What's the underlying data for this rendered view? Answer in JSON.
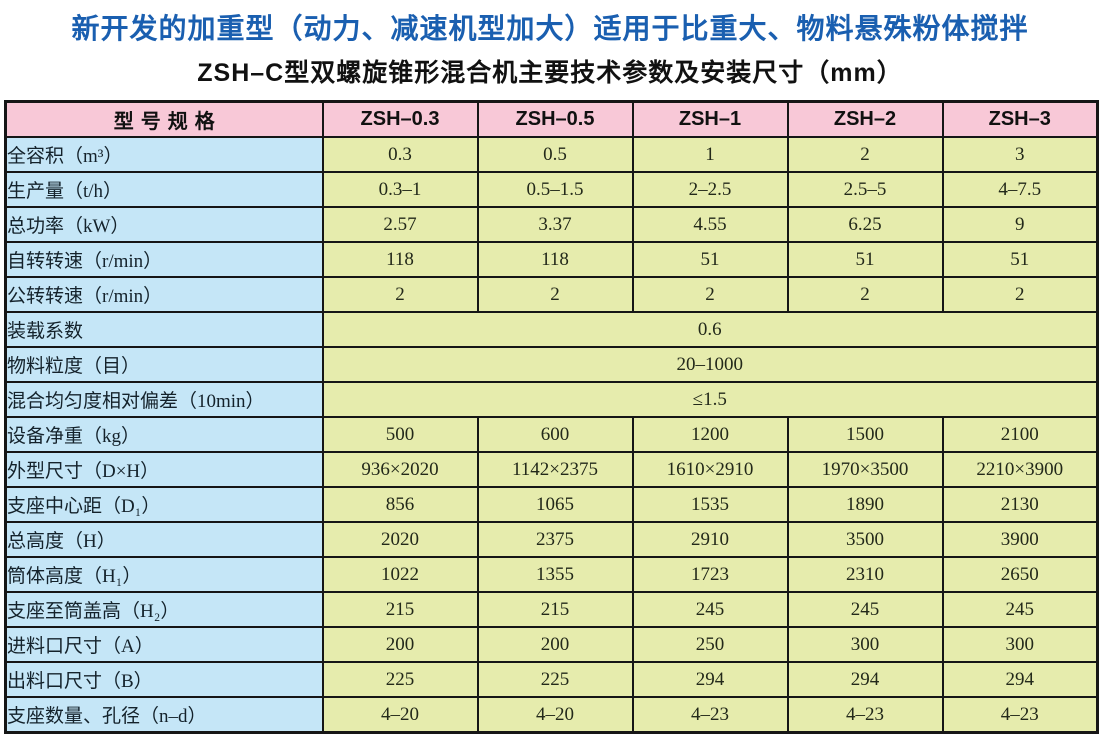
{
  "page": {
    "title": "新开发的加重型（动力、减速机型加大）适用于比重大、物料悬殊粉体搅拌",
    "subtitle": "ZSH–C型双螺旋锥形混合机主要技术参数及安装尺寸（mm）"
  },
  "colors": {
    "title_blue": "#1a5fb0",
    "header_pink": "#f8c8d7",
    "label_blue": "#c5e6f7",
    "cell_green": "#e6ecad",
    "border_black": "#161616"
  },
  "chart_data": {
    "type": "table",
    "columns": [
      "型号规格",
      "ZSH–0.3",
      "ZSH–0.5",
      "ZSH–1",
      "ZSH–2",
      "ZSH–3"
    ],
    "rows": [
      {
        "label": "全容积（m³）",
        "values": [
          "0.3",
          "0.5",
          "1",
          "2",
          "3"
        ]
      },
      {
        "label": "生产量（t/h）",
        "values": [
          "0.3–1",
          "0.5–1.5",
          "2–2.5",
          "2.5–5",
          "4–7.5"
        ]
      },
      {
        "label": "总功率（kW）",
        "values": [
          "2.57",
          "3.37",
          "4.55",
          "6.25",
          "9"
        ]
      },
      {
        "label": "自转转速（r/min）",
        "values": [
          "118",
          "118",
          "51",
          "51",
          "51"
        ]
      },
      {
        "label": "公转转速（r/min）",
        "values": [
          "2",
          "2",
          "2",
          "2",
          "2"
        ]
      },
      {
        "label": "装载系数",
        "values": [
          "0.6"
        ]
      },
      {
        "label": "物料粒度（目）",
        "values": [
          "20–1000"
        ]
      },
      {
        "label": "混合均匀度相对偏差（10min）",
        "values": [
          "≤1.5"
        ]
      },
      {
        "label": "设备净重（kg）",
        "values": [
          "500",
          "600",
          "1200",
          "1500",
          "2100"
        ]
      },
      {
        "label": "外型尺寸（D×H）",
        "values": [
          "936×2020",
          "1142×2375",
          "1610×2910",
          "1970×3500",
          "2210×3900"
        ]
      },
      {
        "label": "支座中心距（D₁）",
        "values": [
          "856",
          "1065",
          "1535",
          "1890",
          "2130"
        ]
      },
      {
        "label": "总高度（H）",
        "values": [
          "2020",
          "2375",
          "2910",
          "3500",
          "3900"
        ]
      },
      {
        "label": "筒体高度（H₁）",
        "values": [
          "1022",
          "1355",
          "1723",
          "2310",
          "2650"
        ]
      },
      {
        "label": "支座至筒盖高（H₂）",
        "values": [
          "215",
          "215",
          "245",
          "245",
          "245"
        ]
      },
      {
        "label": "进料口尺寸（A）",
        "values": [
          "200",
          "200",
          "250",
          "300",
          "300"
        ]
      },
      {
        "label": "出料口尺寸（B）",
        "values": [
          "225",
          "225",
          "294",
          "294",
          "294"
        ]
      },
      {
        "label": "支座数量、孔径（n–d）",
        "values": [
          "4–20",
          "4–20",
          "4–23",
          "4–23",
          "4–23"
        ]
      }
    ]
  }
}
